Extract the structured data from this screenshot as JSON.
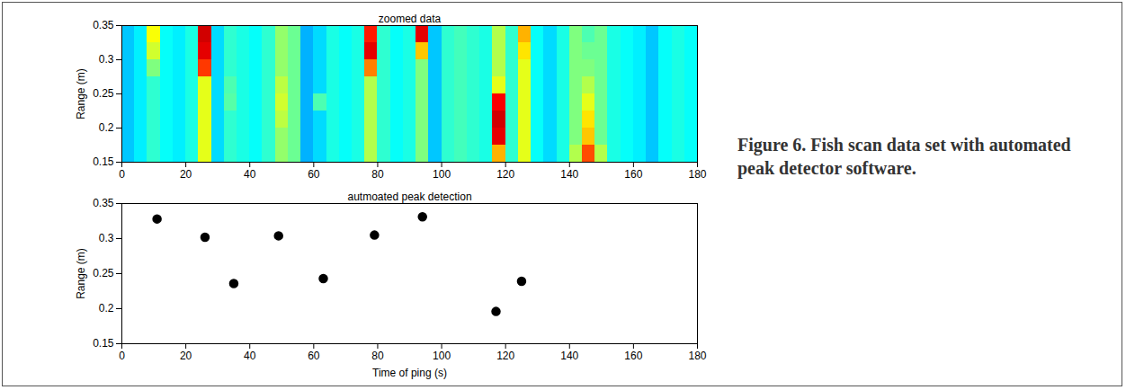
{
  "chart_data": [
    {
      "type": "heatmap",
      "title": "zoomed data",
      "ylabel": "Range (m)",
      "xlim": [
        0,
        180
      ],
      "xticks": [
        0,
        20,
        40,
        60,
        80,
        100,
        120,
        140,
        160,
        180
      ],
      "ylim": [
        0.15,
        0.35
      ],
      "yticks": [
        0.15,
        0.2,
        0.25,
        0.3,
        0.35
      ],
      "zlim": [
        0,
        1
      ],
      "x": [
        2,
        6,
        10,
        14,
        18,
        22,
        26,
        30,
        34,
        38,
        42,
        46,
        50,
        54,
        58,
        62,
        66,
        70,
        74,
        78,
        82,
        86,
        90,
        94,
        98,
        102,
        106,
        110,
        114,
        118,
        122,
        126,
        130,
        134,
        138,
        142,
        146,
        150,
        154,
        158,
        162,
        166,
        170,
        174,
        178
      ],
      "y": [
        0.1625,
        0.1875,
        0.2125,
        0.2375,
        0.2625,
        0.2875,
        0.3125,
        0.3375
      ],
      "cells": [
        [
          0.32,
          0.36,
          0.42,
          0.38,
          0.36,
          0.4,
          0.6,
          0.34,
          0.42,
          0.4,
          0.38,
          0.42,
          0.52,
          0.48,
          0.3,
          0.34,
          0.4,
          0.38,
          0.4,
          0.55,
          0.42,
          0.38,
          0.4,
          0.5,
          0.32,
          0.42,
          0.44,
          0.42,
          0.4,
          0.7,
          0.42,
          0.6,
          0.38,
          0.34,
          0.4,
          0.55,
          0.8,
          0.55,
          0.4,
          0.38,
          0.36,
          0.32,
          0.38,
          0.4,
          0.38
        ],
        [
          0.32,
          0.36,
          0.42,
          0.38,
          0.36,
          0.4,
          0.6,
          0.34,
          0.42,
          0.4,
          0.38,
          0.42,
          0.52,
          0.48,
          0.3,
          0.34,
          0.4,
          0.38,
          0.4,
          0.55,
          0.42,
          0.38,
          0.4,
          0.5,
          0.32,
          0.42,
          0.44,
          0.42,
          0.4,
          0.9,
          0.42,
          0.6,
          0.38,
          0.34,
          0.4,
          0.5,
          0.68,
          0.48,
          0.4,
          0.38,
          0.36,
          0.32,
          0.38,
          0.4,
          0.38
        ],
        [
          0.32,
          0.36,
          0.42,
          0.38,
          0.36,
          0.4,
          0.6,
          0.34,
          0.42,
          0.4,
          0.38,
          0.42,
          0.56,
          0.48,
          0.3,
          0.34,
          0.4,
          0.38,
          0.4,
          0.55,
          0.42,
          0.38,
          0.4,
          0.5,
          0.32,
          0.42,
          0.44,
          0.42,
          0.4,
          0.92,
          0.42,
          0.6,
          0.38,
          0.34,
          0.4,
          0.5,
          0.65,
          0.48,
          0.4,
          0.38,
          0.36,
          0.32,
          0.38,
          0.4,
          0.38
        ],
        [
          0.32,
          0.36,
          0.42,
          0.38,
          0.36,
          0.4,
          0.6,
          0.34,
          0.46,
          0.4,
          0.38,
          0.42,
          0.58,
          0.48,
          0.3,
          0.45,
          0.4,
          0.38,
          0.4,
          0.55,
          0.42,
          0.38,
          0.4,
          0.5,
          0.32,
          0.42,
          0.44,
          0.42,
          0.4,
          0.88,
          0.42,
          0.6,
          0.38,
          0.34,
          0.4,
          0.5,
          0.6,
          0.48,
          0.4,
          0.38,
          0.36,
          0.32,
          0.38,
          0.4,
          0.38
        ],
        [
          0.32,
          0.36,
          0.42,
          0.38,
          0.36,
          0.4,
          0.6,
          0.34,
          0.45,
          0.4,
          0.38,
          0.42,
          0.56,
          0.48,
          0.3,
          0.34,
          0.4,
          0.38,
          0.4,
          0.55,
          0.42,
          0.38,
          0.4,
          0.5,
          0.32,
          0.42,
          0.44,
          0.42,
          0.4,
          0.6,
          0.42,
          0.6,
          0.38,
          0.34,
          0.4,
          0.5,
          0.55,
          0.48,
          0.4,
          0.38,
          0.36,
          0.32,
          0.38,
          0.4,
          0.38
        ],
        [
          0.32,
          0.36,
          0.5,
          0.38,
          0.36,
          0.4,
          0.82,
          0.34,
          0.42,
          0.4,
          0.38,
          0.42,
          0.52,
          0.48,
          0.3,
          0.34,
          0.4,
          0.38,
          0.4,
          0.75,
          0.42,
          0.38,
          0.4,
          0.5,
          0.32,
          0.42,
          0.44,
          0.42,
          0.4,
          0.55,
          0.42,
          0.6,
          0.38,
          0.34,
          0.4,
          0.5,
          0.5,
          0.48,
          0.4,
          0.38,
          0.36,
          0.32,
          0.38,
          0.4,
          0.38
        ],
        [
          0.32,
          0.36,
          0.58,
          0.38,
          0.36,
          0.4,
          0.9,
          0.34,
          0.42,
          0.4,
          0.38,
          0.42,
          0.52,
          0.48,
          0.3,
          0.34,
          0.4,
          0.38,
          0.4,
          0.9,
          0.42,
          0.38,
          0.4,
          0.68,
          0.32,
          0.42,
          0.44,
          0.42,
          0.4,
          0.55,
          0.42,
          0.65,
          0.38,
          0.34,
          0.4,
          0.5,
          0.48,
          0.48,
          0.4,
          0.38,
          0.36,
          0.32,
          0.38,
          0.4,
          0.38
        ],
        [
          0.32,
          0.36,
          0.62,
          0.38,
          0.36,
          0.4,
          0.92,
          0.34,
          0.42,
          0.4,
          0.38,
          0.42,
          0.52,
          0.48,
          0.3,
          0.34,
          0.4,
          0.38,
          0.4,
          0.85,
          0.42,
          0.38,
          0.4,
          0.9,
          0.32,
          0.42,
          0.44,
          0.42,
          0.4,
          0.55,
          0.42,
          0.7,
          0.38,
          0.34,
          0.4,
          0.5,
          0.45,
          0.48,
          0.4,
          0.38,
          0.36,
          0.32,
          0.38,
          0.4,
          0.38
        ]
      ]
    },
    {
      "type": "scatter",
      "title": "autmoated peak detection",
      "xlabel": "Time of ping (s)",
      "ylabel": "Range (m)",
      "xlim": [
        0,
        180
      ],
      "xticks": [
        0,
        20,
        40,
        60,
        80,
        100,
        120,
        140,
        160,
        180
      ],
      "ylim": [
        0.15,
        0.35
      ],
      "yticks": [
        0.15,
        0.2,
        0.25,
        0.3,
        0.35
      ],
      "x": [
        11,
        26,
        35,
        49,
        63,
        79,
        94,
        117,
        125
      ],
      "values": [
        0.328,
        0.302,
        0.236,
        0.304,
        0.243,
        0.305,
        0.331,
        0.196,
        0.239
      ],
      "marker": "circle",
      "color": "#000000"
    }
  ],
  "caption": "Figure 6. Fish scan data set with automated peak detector software."
}
